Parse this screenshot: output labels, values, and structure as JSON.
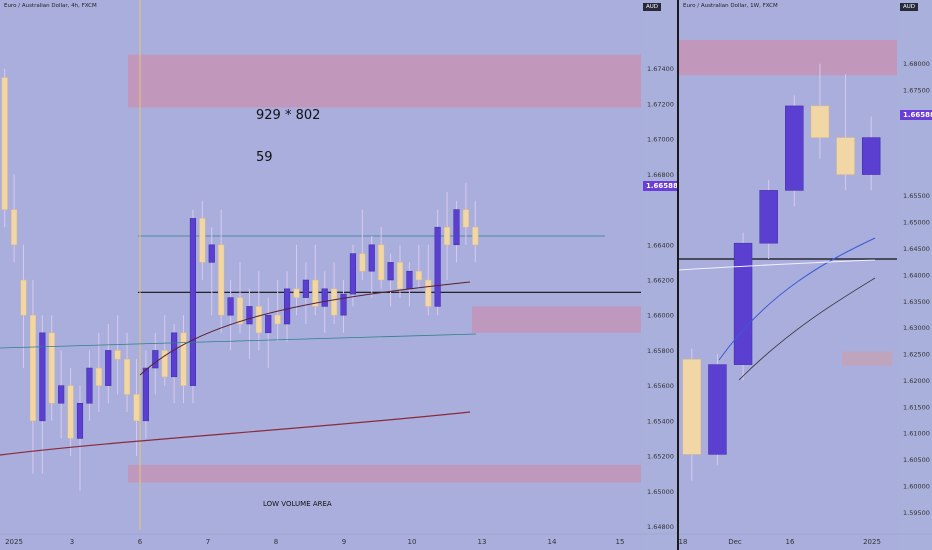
{
  "left_chart": {
    "title": "Euro / Australian Dollar, 4h, FXCM",
    "currency": "AUD",
    "last_price": "1.66588",
    "annotation_1": "929 * 802",
    "annotation_2": "59",
    "zone_label": "LOW VOLUME AREA",
    "price_ticks": [
      "1.67400",
      "1.67200",
      "1.67000",
      "1.66800",
      "1.66400",
      "1.66200",
      "1.66000",
      "1.65800",
      "1.65600",
      "1.65400",
      "1.65200",
      "1.65000",
      "1.64800"
    ],
    "time_ticks": [
      "2025",
      "3",
      "6",
      "7",
      "8",
      "9",
      "10",
      "13",
      "14",
      "15"
    ]
  },
  "right_chart": {
    "title": "Euro / Australian Dollar, 1W, FXCM",
    "currency": "AUD",
    "last_price": "1.66588",
    "price_ticks": [
      "1.68000",
      "1.67500",
      "1.67000",
      "1.65500",
      "1.65000",
      "1.64500",
      "1.64000",
      "1.63500",
      "1.63000",
      "1.62500",
      "1.62000",
      "1.61500",
      "1.61000",
      "1.60500",
      "1.60000",
      "1.59500"
    ],
    "time_ticks": [
      "18",
      "Dec",
      "16",
      "2025"
    ]
  },
  "chart_data": [
    {
      "type": "candlestick",
      "title": "Euro / Australian Dollar, 4h, FXCM",
      "ylim": [
        1.6478,
        1.6762
      ],
      "candles": [
        [
          1.6735,
          1.674,
          1.665,
          1.666
        ],
        [
          1.666,
          1.668,
          1.663,
          1.664
        ],
        [
          1.662,
          1.664,
          1.657,
          1.66
        ],
        [
          1.66,
          1.662,
          1.651,
          1.654
        ],
        [
          1.654,
          1.66,
          1.651,
          1.659
        ],
        [
          1.659,
          1.66,
          1.654,
          1.655
        ],
        [
          1.655,
          1.658,
          1.653,
          1.656
        ],
        [
          1.656,
          1.657,
          1.652,
          1.653
        ],
        [
          1.653,
          1.656,
          1.65,
          1.655
        ],
        [
          1.655,
          1.658,
          1.654,
          1.657
        ],
        [
          1.657,
          1.659,
          1.6545,
          1.656
        ],
        [
          1.656,
          1.6595,
          1.655,
          1.658
        ],
        [
          1.658,
          1.66,
          1.6555,
          1.6575
        ],
        [
          1.6575,
          1.659,
          1.6545,
          1.6555
        ],
        [
          1.6555,
          1.6575,
          1.652,
          1.654
        ],
        [
          1.654,
          1.658,
          1.653,
          1.657
        ],
        [
          1.657,
          1.659,
          1.6555,
          1.658
        ],
        [
          1.658,
          1.66,
          1.656,
          1.6565
        ],
        [
          1.6565,
          1.6595,
          1.655,
          1.659
        ],
        [
          1.659,
          1.66,
          1.655,
          1.656
        ],
        [
          1.656,
          1.666,
          1.655,
          1.6655
        ],
        [
          1.6655,
          1.6665,
          1.662,
          1.663
        ],
        [
          1.663,
          1.665,
          1.66,
          1.664
        ],
        [
          1.664,
          1.666,
          1.659,
          1.66
        ],
        [
          1.66,
          1.662,
          1.658,
          1.661
        ],
        [
          1.661,
          1.663,
          1.659,
          1.6595
        ],
        [
          1.6595,
          1.6615,
          1.6575,
          1.6605
        ],
        [
          1.6605,
          1.6625,
          1.658,
          1.659
        ],
        [
          1.659,
          1.661,
          1.657,
          1.66
        ],
        [
          1.66,
          1.662,
          1.6585,
          1.6595
        ],
        [
          1.6595,
          1.6625,
          1.6585,
          1.6615
        ],
        [
          1.6615,
          1.664,
          1.66,
          1.661
        ],
        [
          1.661,
          1.663,
          1.6595,
          1.662
        ],
        [
          1.662,
          1.664,
          1.66,
          1.6605
        ],
        [
          1.6605,
          1.6625,
          1.659,
          1.6615
        ],
        [
          1.6615,
          1.663,
          1.6595,
          1.66
        ],
        [
          1.66,
          1.662,
          1.659,
          1.6612
        ],
        [
          1.6612,
          1.664,
          1.6605,
          1.6635
        ],
        [
          1.6635,
          1.666,
          1.662,
          1.6625
        ],
        [
          1.6625,
          1.6645,
          1.661,
          1.664
        ],
        [
          1.664,
          1.665,
          1.6615,
          1.662
        ],
        [
          1.662,
          1.6635,
          1.6605,
          1.663
        ],
        [
          1.663,
          1.664,
          1.661,
          1.6615
        ],
        [
          1.6615,
          1.663,
          1.6605,
          1.6625
        ],
        [
          1.6625,
          1.664,
          1.6615,
          1.662
        ],
        [
          1.662,
          1.664,
          1.66,
          1.6605
        ],
        [
          1.6605,
          1.666,
          1.66,
          1.665
        ],
        [
          1.665,
          1.667,
          1.662,
          1.664
        ],
        [
          1.664,
          1.6665,
          1.663,
          1.666
        ],
        [
          1.666,
          1.6675,
          1.664,
          1.665
        ],
        [
          1.665,
          1.6665,
          1.663,
          1.664
        ]
      ],
      "levels": {
        "upper_zone": [
          1.6718,
          1.6748
        ],
        "right_zone": [
          1.659,
          1.6605
        ],
        "bottom_zone": [
          1.6505,
          1.6515
        ],
        "black_line": 1.6613,
        "teal_line": 1.6645
      }
    },
    {
      "type": "candlestick",
      "title": "Euro / Australian Dollar, 1W, FXCM",
      "ylim": [
        1.593,
        1.686
      ],
      "candles": [
        [
          1.624,
          1.626,
          1.601,
          1.606
        ],
        [
          1.606,
          1.625,
          1.604,
          1.623
        ],
        [
          1.623,
          1.648,
          1.62,
          1.646
        ],
        [
          1.646,
          1.658,
          1.643,
          1.656
        ],
        [
          1.656,
          1.674,
          1.653,
          1.672
        ],
        [
          1.672,
          1.68,
          1.662,
          1.666
        ],
        [
          1.666,
          1.678,
          1.656,
          1.659
        ],
        [
          1.659,
          1.67,
          1.656,
          1.666
        ]
      ],
      "levels": {
        "upper_zone": [
          1.6778,
          1.6845
        ],
        "lower_zone": [
          1.6228,
          1.6255
        ],
        "black_line": 1.643
      }
    }
  ]
}
